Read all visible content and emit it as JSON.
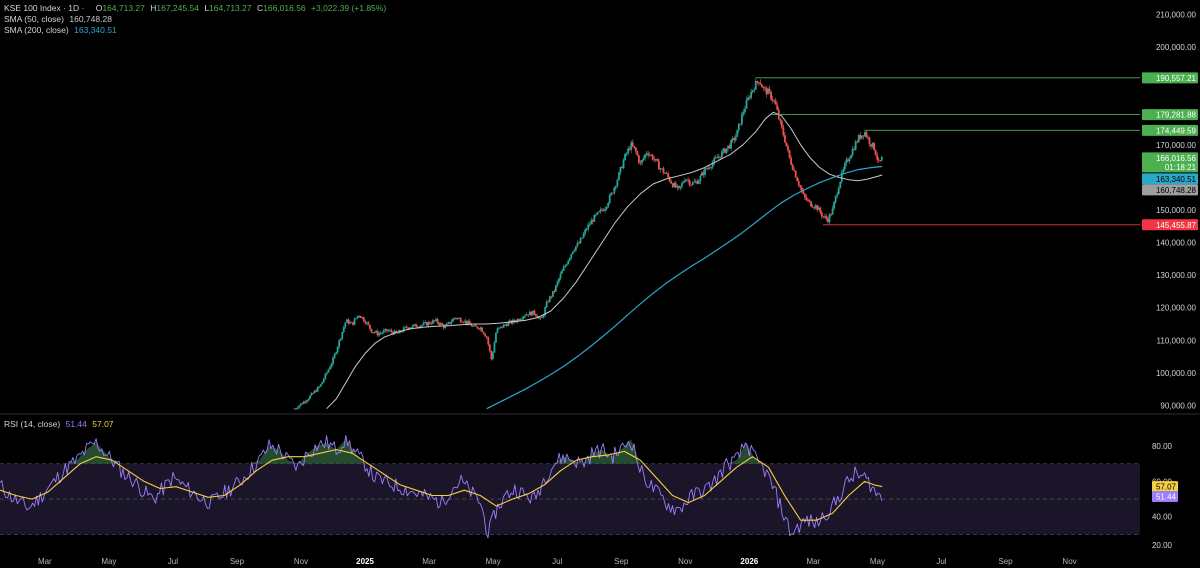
{
  "header": {
    "symbol": "KSE 100 Index · 1D ·",
    "open_label": "O",
    "open": "164,713.27",
    "high_label": "H",
    "high": "167,245.54",
    "low_label": "L",
    "low": "164,713.27",
    "close_label": "C",
    "close": "166,016.56",
    "change": "+3,022.39 (+1.85%)"
  },
  "indicators": {
    "sma50": {
      "label": "SMA (50, close)",
      "value": "160,748.28",
      "color": "#c9c9c9"
    },
    "sma200": {
      "label": "SMA (200, close)",
      "value": "163,340.51",
      "color": "#2aa8c8"
    },
    "rsi": {
      "label": "RSI (14, close)",
      "value": "51.44",
      "ma_value": "57.07",
      "color": "#9c7dff",
      "ma_color": "#f4d03f"
    }
  },
  "price_badges": {
    "high_line": {
      "text": "190,557.21",
      "color": "#4caf50"
    },
    "level2": {
      "text": "179,281.88",
      "color": "#4caf50"
    },
    "level3": {
      "text": "174,449.59",
      "color": "#4caf50"
    },
    "last": {
      "text": "166,016.56",
      "countdown": "01:18:21",
      "color": "#4caf50"
    },
    "sma200": {
      "text": "163,340.51",
      "color": "#2aa8c8"
    },
    "sma50": {
      "text": "160,748.28",
      "color": "#9e9e9e"
    },
    "low_line": {
      "text": "145,455.87",
      "color": "#f23645"
    }
  },
  "rsi_badges": {
    "ma": {
      "text": "57.07",
      "color": "#f4d03f"
    },
    "rsi": {
      "text": "51.44",
      "color": "#9c7dff"
    }
  },
  "chart_data": {
    "type": "candlestick",
    "title": "KSE 100 Index · 1D",
    "price_axis": {
      "ticks": [
        "210,000.00",
        "200,000.00",
        "190,000.00",
        "180,000.00",
        "170,000.00",
        "160,000.00",
        "150,000.00",
        "140,000.00",
        "130,000.00",
        "120,000.00",
        "110,000.00",
        "100,000.00",
        "90,000.00"
      ],
      "ylim": [
        88000,
        212000
      ]
    },
    "rsi_axis": {
      "ticks": [
        "80.00",
        "60.00",
        "40.00",
        "20.00"
      ],
      "ylim": [
        20,
        88
      ],
      "bands": [
        30,
        50,
        70
      ]
    },
    "time_axis": [
      {
        "label": "Mar",
        "t": 1.4
      },
      {
        "label": "May",
        "t": 3.4
      },
      {
        "label": "Jul",
        "t": 5.4
      },
      {
        "label": "Sep",
        "t": 7.4
      },
      {
        "label": "Nov",
        "t": 9.4
      },
      {
        "label": "2025",
        "t": 11.4,
        "year": true
      },
      {
        "label": "Mar",
        "t": 13.4
      },
      {
        "label": "May",
        "t": 15.4
      },
      {
        "label": "Jul",
        "t": 17.4
      },
      {
        "label": "Sep",
        "t": 19.4
      },
      {
        "label": "Nov",
        "t": 21.4
      },
      {
        "label": "2026",
        "t": 23.4,
        "year": true
      },
      {
        "label": "Mar",
        "t": 25.4
      },
      {
        "label": "May",
        "t": 27.4
      },
      {
        "label": "Jul",
        "t": 29.4
      },
      {
        "label": "Sep",
        "t": 31.4
      },
      {
        "label": "Nov",
        "t": 33.4
      }
    ],
    "close_path": [
      [
        9.2,
        89000
      ],
      [
        9.6,
        92000
      ],
      [
        10.0,
        96000
      ],
      [
        10.2,
        100000
      ],
      [
        10.4,
        104000
      ],
      [
        10.6,
        110000
      ],
      [
        10.8,
        116000
      ],
      [
        11.0,
        115000
      ],
      [
        11.2,
        118000
      ],
      [
        11.4,
        116000
      ],
      [
        11.6,
        113000
      ],
      [
        11.8,
        112000
      ],
      [
        12.1,
        113000
      ],
      [
        12.4,
        112000
      ],
      [
        12.7,
        114000
      ],
      [
        13.0,
        114500
      ],
      [
        13.3,
        115000
      ],
      [
        13.6,
        116000
      ],
      [
        13.9,
        114000
      ],
      [
        14.2,
        117000
      ],
      [
        14.5,
        116000
      ],
      [
        14.8,
        114000
      ],
      [
        15.0,
        114000
      ],
      [
        15.2,
        111000
      ],
      [
        15.35,
        104000
      ],
      [
        15.5,
        113000
      ],
      [
        15.8,
        115000
      ],
      [
        16.1,
        116000
      ],
      [
        16.4,
        118000
      ],
      [
        16.7,
        118500
      ],
      [
        16.9,
        116000
      ],
      [
        17.1,
        122000
      ],
      [
        17.3,
        125000
      ],
      [
        17.5,
        130000
      ],
      [
        17.7,
        134000
      ],
      [
        17.9,
        138000
      ],
      [
        18.1,
        140000
      ],
      [
        18.3,
        144000
      ],
      [
        18.5,
        147000
      ],
      [
        18.7,
        149000
      ],
      [
        18.9,
        151000
      ],
      [
        19.1,
        155000
      ],
      [
        19.3,
        160000
      ],
      [
        19.5,
        166000
      ],
      [
        19.7,
        170000
      ],
      [
        19.85,
        168000
      ],
      [
        20.0,
        164000
      ],
      [
        20.2,
        168000
      ],
      [
        20.4,
        166000
      ],
      [
        20.6,
        163000
      ],
      [
        20.8,
        161000
      ],
      [
        21.0,
        158000
      ],
      [
        21.2,
        156000
      ],
      [
        21.4,
        160000
      ],
      [
        21.6,
        158000
      ],
      [
        21.8,
        159000
      ],
      [
        22.0,
        162000
      ],
      [
        22.2,
        164000
      ],
      [
        22.4,
        166000
      ],
      [
        22.6,
        168000
      ],
      [
        22.8,
        170000
      ],
      [
        23.0,
        173000
      ],
      [
        23.2,
        180000
      ],
      [
        23.4,
        185000
      ],
      [
        23.55,
        188000
      ],
      [
        23.7,
        190000
      ],
      [
        23.85,
        187000
      ],
      [
        24.0,
        186000
      ],
      [
        24.2,
        183000
      ],
      [
        24.35,
        177000
      ],
      [
        24.5,
        172000
      ],
      [
        24.65,
        166000
      ],
      [
        24.8,
        162000
      ],
      [
        24.95,
        158000
      ],
      [
        25.1,
        154000
      ],
      [
        25.3,
        152000
      ],
      [
        25.5,
        151000
      ],
      [
        25.7,
        148000
      ],
      [
        25.85,
        147000
      ],
      [
        26.0,
        150000
      ],
      [
        26.2,
        158000
      ],
      [
        26.4,
        164000
      ],
      [
        26.6,
        168000
      ],
      [
        26.8,
        172000
      ],
      [
        27.0,
        174000
      ],
      [
        27.15,
        171000
      ],
      [
        27.3,
        169000
      ],
      [
        27.45,
        164000
      ],
      [
        27.55,
        166000
      ]
    ],
    "sma50_path": [
      [
        10.2,
        89000
      ],
      [
        10.5,
        92000
      ],
      [
        10.8,
        97000
      ],
      [
        11.1,
        102000
      ],
      [
        11.4,
        106000
      ],
      [
        11.7,
        109000
      ],
      [
        12.0,
        111000
      ],
      [
        12.4,
        112500
      ],
      [
        12.8,
        113500
      ],
      [
        13.2,
        114000
      ],
      [
        13.6,
        114300
      ],
      [
        14.0,
        114500
      ],
      [
        14.4,
        114800
      ],
      [
        14.8,
        115000
      ],
      [
        15.2,
        115000
      ],
      [
        15.6,
        115300
      ],
      [
        16.0,
        115700
      ],
      [
        16.4,
        116100
      ],
      [
        16.8,
        117000
      ],
      [
        17.2,
        119000
      ],
      [
        17.6,
        123000
      ],
      [
        18.0,
        128000
      ],
      [
        18.4,
        134000
      ],
      [
        18.8,
        140000
      ],
      [
        19.2,
        146000
      ],
      [
        19.6,
        151000
      ],
      [
        20.0,
        155000
      ],
      [
        20.4,
        158000
      ],
      [
        20.8,
        159500
      ],
      [
        21.2,
        160500
      ],
      [
        21.6,
        161500
      ],
      [
        22.0,
        163000
      ],
      [
        22.4,
        165000
      ],
      [
        22.8,
        167000
      ],
      [
        23.2,
        170000
      ],
      [
        23.6,
        174000
      ],
      [
        23.9,
        178000
      ],
      [
        24.15,
        180000
      ],
      [
        24.4,
        179000
      ],
      [
        24.7,
        175000
      ],
      [
        25.0,
        170000
      ],
      [
        25.3,
        166000
      ],
      [
        25.6,
        163000
      ],
      [
        25.9,
        161000
      ],
      [
        26.2,
        160000
      ],
      [
        26.5,
        159300
      ],
      [
        26.8,
        159000
      ],
      [
        27.1,
        159500
      ],
      [
        27.4,
        160300
      ],
      [
        27.55,
        160748
      ]
    ],
    "sma200_path": [
      [
        15.2,
        89000
      ],
      [
        15.6,
        91000
      ],
      [
        16.0,
        93000
      ],
      [
        16.4,
        95000
      ],
      [
        16.8,
        97200
      ],
      [
        17.2,
        99500
      ],
      [
        17.6,
        102000
      ],
      [
        18.0,
        104800
      ],
      [
        18.4,
        107800
      ],
      [
        18.8,
        111000
      ],
      [
        19.2,
        114300
      ],
      [
        19.6,
        117800
      ],
      [
        20.0,
        121200
      ],
      [
        20.4,
        124500
      ],
      [
        20.8,
        127500
      ],
      [
        21.2,
        130200
      ],
      [
        21.6,
        132800
      ],
      [
        22.0,
        135200
      ],
      [
        22.4,
        137800
      ],
      [
        22.8,
        140400
      ],
      [
        23.2,
        143200
      ],
      [
        23.6,
        146200
      ],
      [
        24.0,
        149300
      ],
      [
        24.4,
        152200
      ],
      [
        24.8,
        154600
      ],
      [
        25.2,
        156600
      ],
      [
        25.6,
        158400
      ],
      [
        26.0,
        159900
      ],
      [
        26.4,
        161300
      ],
      [
        26.8,
        162400
      ],
      [
        27.2,
        163000
      ],
      [
        27.55,
        163340
      ]
    ],
    "rsi_path": [
      [
        0,
        58
      ],
      [
        0.3,
        52
      ],
      [
        0.6,
        48
      ],
      [
        0.9,
        45
      ],
      [
        1.2,
        50
      ],
      [
        1.5,
        56
      ],
      [
        1.8,
        62
      ],
      [
        2.1,
        68
      ],
      [
        2.4,
        72
      ],
      [
        2.7,
        78
      ],
      [
        3.0,
        82
      ],
      [
        3.3,
        76
      ],
      [
        3.6,
        70
      ],
      [
        3.9,
        64
      ],
      [
        4.2,
        60
      ],
      [
        4.5,
        54
      ],
      [
        4.8,
        50
      ],
      [
        5.1,
        56
      ],
      [
        5.4,
        62
      ],
      [
        5.7,
        58
      ],
      [
        6.0,
        54
      ],
      [
        6.3,
        50
      ],
      [
        6.6,
        48
      ],
      [
        6.9,
        52
      ],
      [
        7.2,
        56
      ],
      [
        7.5,
        60
      ],
      [
        7.8,
        66
      ],
      [
        8.1,
        72
      ],
      [
        8.4,
        80
      ],
      [
        8.7,
        78
      ],
      [
        9.0,
        72
      ],
      [
        9.3,
        68
      ],
      [
        9.6,
        76
      ],
      [
        9.9,
        80
      ],
      [
        10.2,
        82
      ],
      [
        10.5,
        78
      ],
      [
        10.8,
        84
      ],
      [
        11.1,
        76
      ],
      [
        11.4,
        70
      ],
      [
        11.7,
        62
      ],
      [
        12.0,
        60
      ],
      [
        12.3,
        58
      ],
      [
        12.6,
        56
      ],
      [
        12.9,
        54
      ],
      [
        13.2,
        52
      ],
      [
        13.5,
        50
      ],
      [
        13.8,
        48
      ],
      [
        14.1,
        56
      ],
      [
        14.4,
        60
      ],
      [
        14.7,
        54
      ],
      [
        15.0,
        48
      ],
      [
        15.25,
        30
      ],
      [
        15.5,
        44
      ],
      [
        15.8,
        52
      ],
      [
        16.1,
        56
      ],
      [
        16.4,
        52
      ],
      [
        16.7,
        50
      ],
      [
        17.0,
        62
      ],
      [
        17.3,
        70
      ],
      [
        17.6,
        74
      ],
      [
        17.9,
        72
      ],
      [
        18.2,
        70
      ],
      [
        18.5,
        76
      ],
      [
        18.8,
        78
      ],
      [
        19.1,
        74
      ],
      [
        19.4,
        78
      ],
      [
        19.7,
        84
      ],
      [
        20.0,
        66
      ],
      [
        20.3,
        58
      ],
      [
        20.6,
        52
      ],
      [
        20.9,
        46
      ],
      [
        21.2,
        44
      ],
      [
        21.5,
        50
      ],
      [
        21.8,
        54
      ],
      [
        22.1,
        56
      ],
      [
        22.4,
        62
      ],
      [
        22.7,
        70
      ],
      [
        23.0,
        72
      ],
      [
        23.3,
        82
      ],
      [
        23.6,
        72
      ],
      [
        23.9,
        66
      ],
      [
        24.2,
        54
      ],
      [
        24.5,
        40
      ],
      [
        24.7,
        30
      ],
      [
        24.9,
        34
      ],
      [
        25.2,
        38
      ],
      [
        25.5,
        36
      ],
      [
        25.8,
        42
      ],
      [
        26.1,
        48
      ],
      [
        26.4,
        58
      ],
      [
        26.7,
        64
      ],
      [
        27.0,
        62
      ],
      [
        27.2,
        58
      ],
      [
        27.4,
        52
      ],
      [
        27.55,
        51.44
      ]
    ],
    "rsi_ma_path": [
      [
        0,
        55
      ],
      [
        0.5,
        52
      ],
      [
        1.0,
        50
      ],
      [
        1.5,
        54
      ],
      [
        2.0,
        62
      ],
      [
        2.5,
        70
      ],
      [
        3.0,
        74
      ],
      [
        3.5,
        72
      ],
      [
        4.0,
        66
      ],
      [
        4.5,
        60
      ],
      [
        5.0,
        56
      ],
      [
        5.5,
        57
      ],
      [
        6.0,
        54
      ],
      [
        6.5,
        51
      ],
      [
        7.0,
        52
      ],
      [
        7.5,
        58
      ],
      [
        8.0,
        66
      ],
      [
        8.5,
        72
      ],
      [
        9.0,
        74
      ],
      [
        9.5,
        74
      ],
      [
        10.0,
        76
      ],
      [
        10.5,
        78
      ],
      [
        11.0,
        76
      ],
      [
        11.5,
        70
      ],
      [
        12.0,
        64
      ],
      [
        12.5,
        58
      ],
      [
        13.0,
        55
      ],
      [
        13.5,
        52
      ],
      [
        14.0,
        52
      ],
      [
        14.5,
        55
      ],
      [
        15.0,
        52
      ],
      [
        15.5,
        46
      ],
      [
        16.0,
        50
      ],
      [
        16.5,
        53
      ],
      [
        17.0,
        58
      ],
      [
        17.5,
        66
      ],
      [
        18.0,
        72
      ],
      [
        18.5,
        74
      ],
      [
        19.0,
        75
      ],
      [
        19.5,
        77
      ],
      [
        20.0,
        72
      ],
      [
        20.5,
        62
      ],
      [
        21.0,
        52
      ],
      [
        21.5,
        48
      ],
      [
        22.0,
        52
      ],
      [
        22.5,
        60
      ],
      [
        23.0,
        68
      ],
      [
        23.5,
        74
      ],
      [
        24.0,
        68
      ],
      [
        24.5,
        52
      ],
      [
        25.0,
        38
      ],
      [
        25.5,
        38
      ],
      [
        26.0,
        42
      ],
      [
        26.5,
        52
      ],
      [
        27.0,
        60
      ],
      [
        27.3,
        58
      ],
      [
        27.55,
        57.07
      ]
    ],
    "level_lines": [
      {
        "y": 190557.21,
        "t0": 23.6,
        "color": "#4caf50"
      },
      {
        "y": 179281.88,
        "t0": 24.1,
        "color": "#4caf50"
      },
      {
        "y": 174449.59,
        "t0": 27.0,
        "color": "#4caf50"
      },
      {
        "y": 145455.87,
        "t0": 25.7,
        "color": "#f23645"
      }
    ]
  }
}
